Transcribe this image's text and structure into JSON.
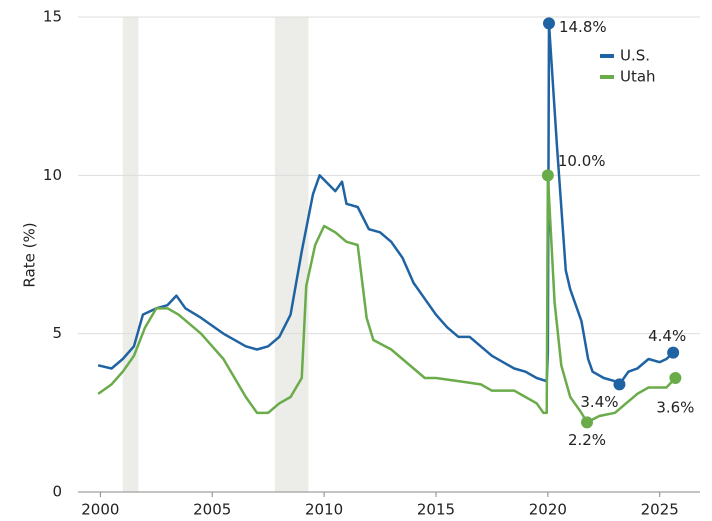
{
  "chart_data": {
    "type": "line",
    "y_label": "Rate (%)",
    "xlim": [
      1999,
      2026.8
    ],
    "ylim": [
      0,
      15
    ],
    "xticks": [
      2000,
      2005,
      2010,
      2015,
      2020,
      2025
    ],
    "yticks": [
      0,
      5,
      10,
      15
    ],
    "grid": true,
    "legend": "top-right",
    "shaded_periods": [
      [
        2001.0,
        2001.7
      ],
      [
        2007.8,
        2009.3
      ]
    ],
    "series": [
      {
        "name": "U.S.",
        "color": "#1f63a3",
        "x": [
          1999.9,
          2000.5,
          2001.0,
          2001.5,
          2001.9,
          2002.5,
          2003.0,
          2003.4,
          2003.8,
          2004.5,
          2005.5,
          2006.5,
          2007.0,
          2007.5,
          2008.0,
          2008.5,
          2009.0,
          2009.5,
          2009.8,
          2010.5,
          2010.8,
          2011.0,
          2011.5,
          2012.0,
          2012.5,
          2013.0,
          2013.5,
          2014.0,
          2014.5,
          2015.0,
          2015.5,
          2016.0,
          2016.5,
          2017.0,
          2017.5,
          2018.0,
          2018.5,
          2019.0,
          2019.5,
          2019.95,
          2020.0,
          2020.05,
          2020.4,
          2020.8,
          2021.0,
          2021.5,
          2021.8,
          2022.0,
          2022.5,
          2023.0,
          2023.2,
          2023.6,
          2024.0,
          2024.5,
          2025.0,
          2025.3,
          2025.6
        ],
        "values": [
          4.0,
          3.9,
          4.2,
          4.6,
          5.6,
          5.8,
          5.9,
          6.2,
          5.8,
          5.5,
          5.0,
          4.6,
          4.5,
          4.6,
          4.9,
          5.6,
          7.6,
          9.4,
          10.0,
          9.5,
          9.8,
          9.1,
          9.0,
          8.3,
          8.2,
          7.9,
          7.4,
          6.6,
          6.1,
          5.6,
          5.2,
          4.9,
          4.9,
          4.6,
          4.3,
          4.1,
          3.9,
          3.8,
          3.6,
          3.5,
          4.4,
          14.8,
          11.0,
          7.0,
          6.4,
          5.4,
          4.2,
          3.8,
          3.6,
          3.5,
          3.4,
          3.8,
          3.9,
          4.2,
          4.1,
          4.2,
          4.4
        ],
        "highlights": [
          {
            "x": 2020.05,
            "y": 14.8,
            "label": "14.8%"
          },
          {
            "x": 2023.2,
            "y": 3.4,
            "label": "3.4%"
          },
          {
            "x": 2025.6,
            "y": 4.4,
            "label": "4.4%"
          }
        ]
      },
      {
        "name": "Utah",
        "color": "#6aab4a",
        "x": [
          1999.9,
          2000.5,
          2001.0,
          2001.5,
          2002.0,
          2002.5,
          2003.0,
          2003.5,
          2004.0,
          2004.5,
          2005.0,
          2005.5,
          2006.0,
          2006.5,
          2007.0,
          2007.5,
          2008.0,
          2008.5,
          2009.0,
          2009.2,
          2009.6,
          2010.0,
          2010.5,
          2011.0,
          2011.5,
          2011.9,
          2012.2,
          2013.0,
          2014.0,
          2014.5,
          2015.0,
          2016.0,
          2017.0,
          2017.5,
          2018.5,
          2019.0,
          2019.5,
          2019.8,
          2019.95,
          2020.0,
          2020.3,
          2020.6,
          2021.0,
          2021.5,
          2021.75,
          2022.3,
          2023.0,
          2023.5,
          2024.0,
          2024.5,
          2025.0,
          2025.3,
          2025.7
        ],
        "values": [
          3.1,
          3.4,
          3.8,
          4.3,
          5.2,
          5.8,
          5.8,
          5.6,
          5.3,
          5.0,
          4.6,
          4.2,
          3.6,
          3.0,
          2.5,
          2.5,
          2.8,
          3.0,
          3.6,
          6.5,
          7.8,
          8.4,
          8.2,
          7.9,
          7.8,
          5.5,
          4.8,
          4.5,
          3.9,
          3.6,
          3.6,
          3.5,
          3.4,
          3.2,
          3.2,
          3.0,
          2.8,
          2.5,
          2.5,
          10.0,
          6.0,
          4.0,
          3.0,
          2.5,
          2.2,
          2.4,
          2.5,
          2.8,
          3.1,
          3.3,
          3.3,
          3.3,
          3.6
        ],
        "highlights": [
          {
            "x": 2020.0,
            "y": 10.0,
            "label": "10.0%"
          },
          {
            "x": 2021.75,
            "y": 2.2,
            "label": "2.2%"
          },
          {
            "x": 2025.7,
            "y": 3.6,
            "label": "3.6%"
          }
        ]
      }
    ]
  }
}
